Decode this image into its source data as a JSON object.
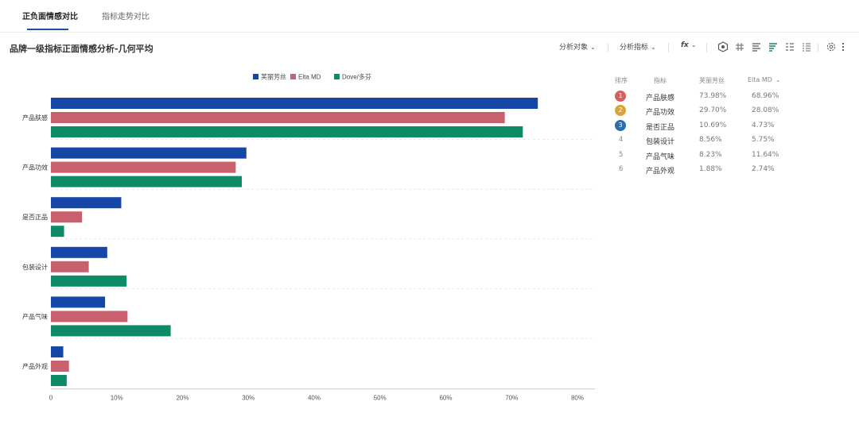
{
  "tabs": [
    {
      "label": "正负面情感对比",
      "active": true
    },
    {
      "label": "指标走势对比",
      "active": false
    }
  ],
  "page_title": "品牌一级指标正面情感分析-几何平均",
  "toolbar": {
    "analysis_object": "分析对象",
    "analysis_metric": "分析指标",
    "fx": "fx",
    "icons": [
      "hexagon-icon",
      "grid-icon",
      "bar-align-left-icon",
      "bar-sort-icon",
      "list-icon",
      "list-detail-icon",
      "gear-icon",
      "more-icon"
    ]
  },
  "colors": {
    "brand1": "#1747a6",
    "brand2": "#c9606e",
    "brand3": "#0f8a66",
    "accent": "#1d4fa0",
    "rank1": "#d95f5f",
    "rank2": "#d8a53a",
    "rank3": "#2f6eae"
  },
  "chart_data": {
    "type": "bar",
    "orientation": "horizontal",
    "categories": [
      "产品肤感",
      "产品功效",
      "是否正品",
      "包装设计",
      "产品气味",
      "产品外观"
    ],
    "series": [
      {
        "name": "芙丽芳丝",
        "color": "#1747a6",
        "values": [
          73.98,
          29.7,
          10.69,
          8.56,
          8.23,
          1.88
        ]
      },
      {
        "name": "Elta MD",
        "color": "#c9606e",
        "values": [
          68.96,
          28.08,
          4.73,
          5.75,
          11.64,
          2.74
        ]
      },
      {
        "name": "Dove/多芬",
        "color": "#0f8a66",
        "values": [
          71.7,
          29.0,
          2.0,
          11.5,
          18.2,
          2.4
        ]
      }
    ],
    "x_ticks": [
      "0",
      "10%",
      "20%",
      "30%",
      "40%",
      "50%",
      "60%",
      "70%",
      "80%"
    ],
    "xlim": [
      0,
      80
    ],
    "legend_position": "top",
    "grid": "horizontal dashed separators"
  },
  "table": {
    "headers": {
      "rank": "排序",
      "metric": "指标",
      "col1": "芙丽芳丝",
      "col2": "Elta MD"
    },
    "rows": [
      {
        "rank": "1",
        "metric": "产品肤感",
        "v1": "73.98%",
        "v2": "68.96%"
      },
      {
        "rank": "2",
        "metric": "产品功效",
        "v1": "29.70%",
        "v2": "28.08%"
      },
      {
        "rank": "3",
        "metric": "是否正品",
        "v1": "10.69%",
        "v2": "4.73%"
      },
      {
        "rank": "4",
        "metric": "包装设计",
        "v1": "8.56%",
        "v2": "5.75%"
      },
      {
        "rank": "5",
        "metric": "产品气味",
        "v1": "8.23%",
        "v2": "11.64%"
      },
      {
        "rank": "6",
        "metric": "产品外观",
        "v1": "1.88%",
        "v2": "2.74%"
      }
    ]
  }
}
